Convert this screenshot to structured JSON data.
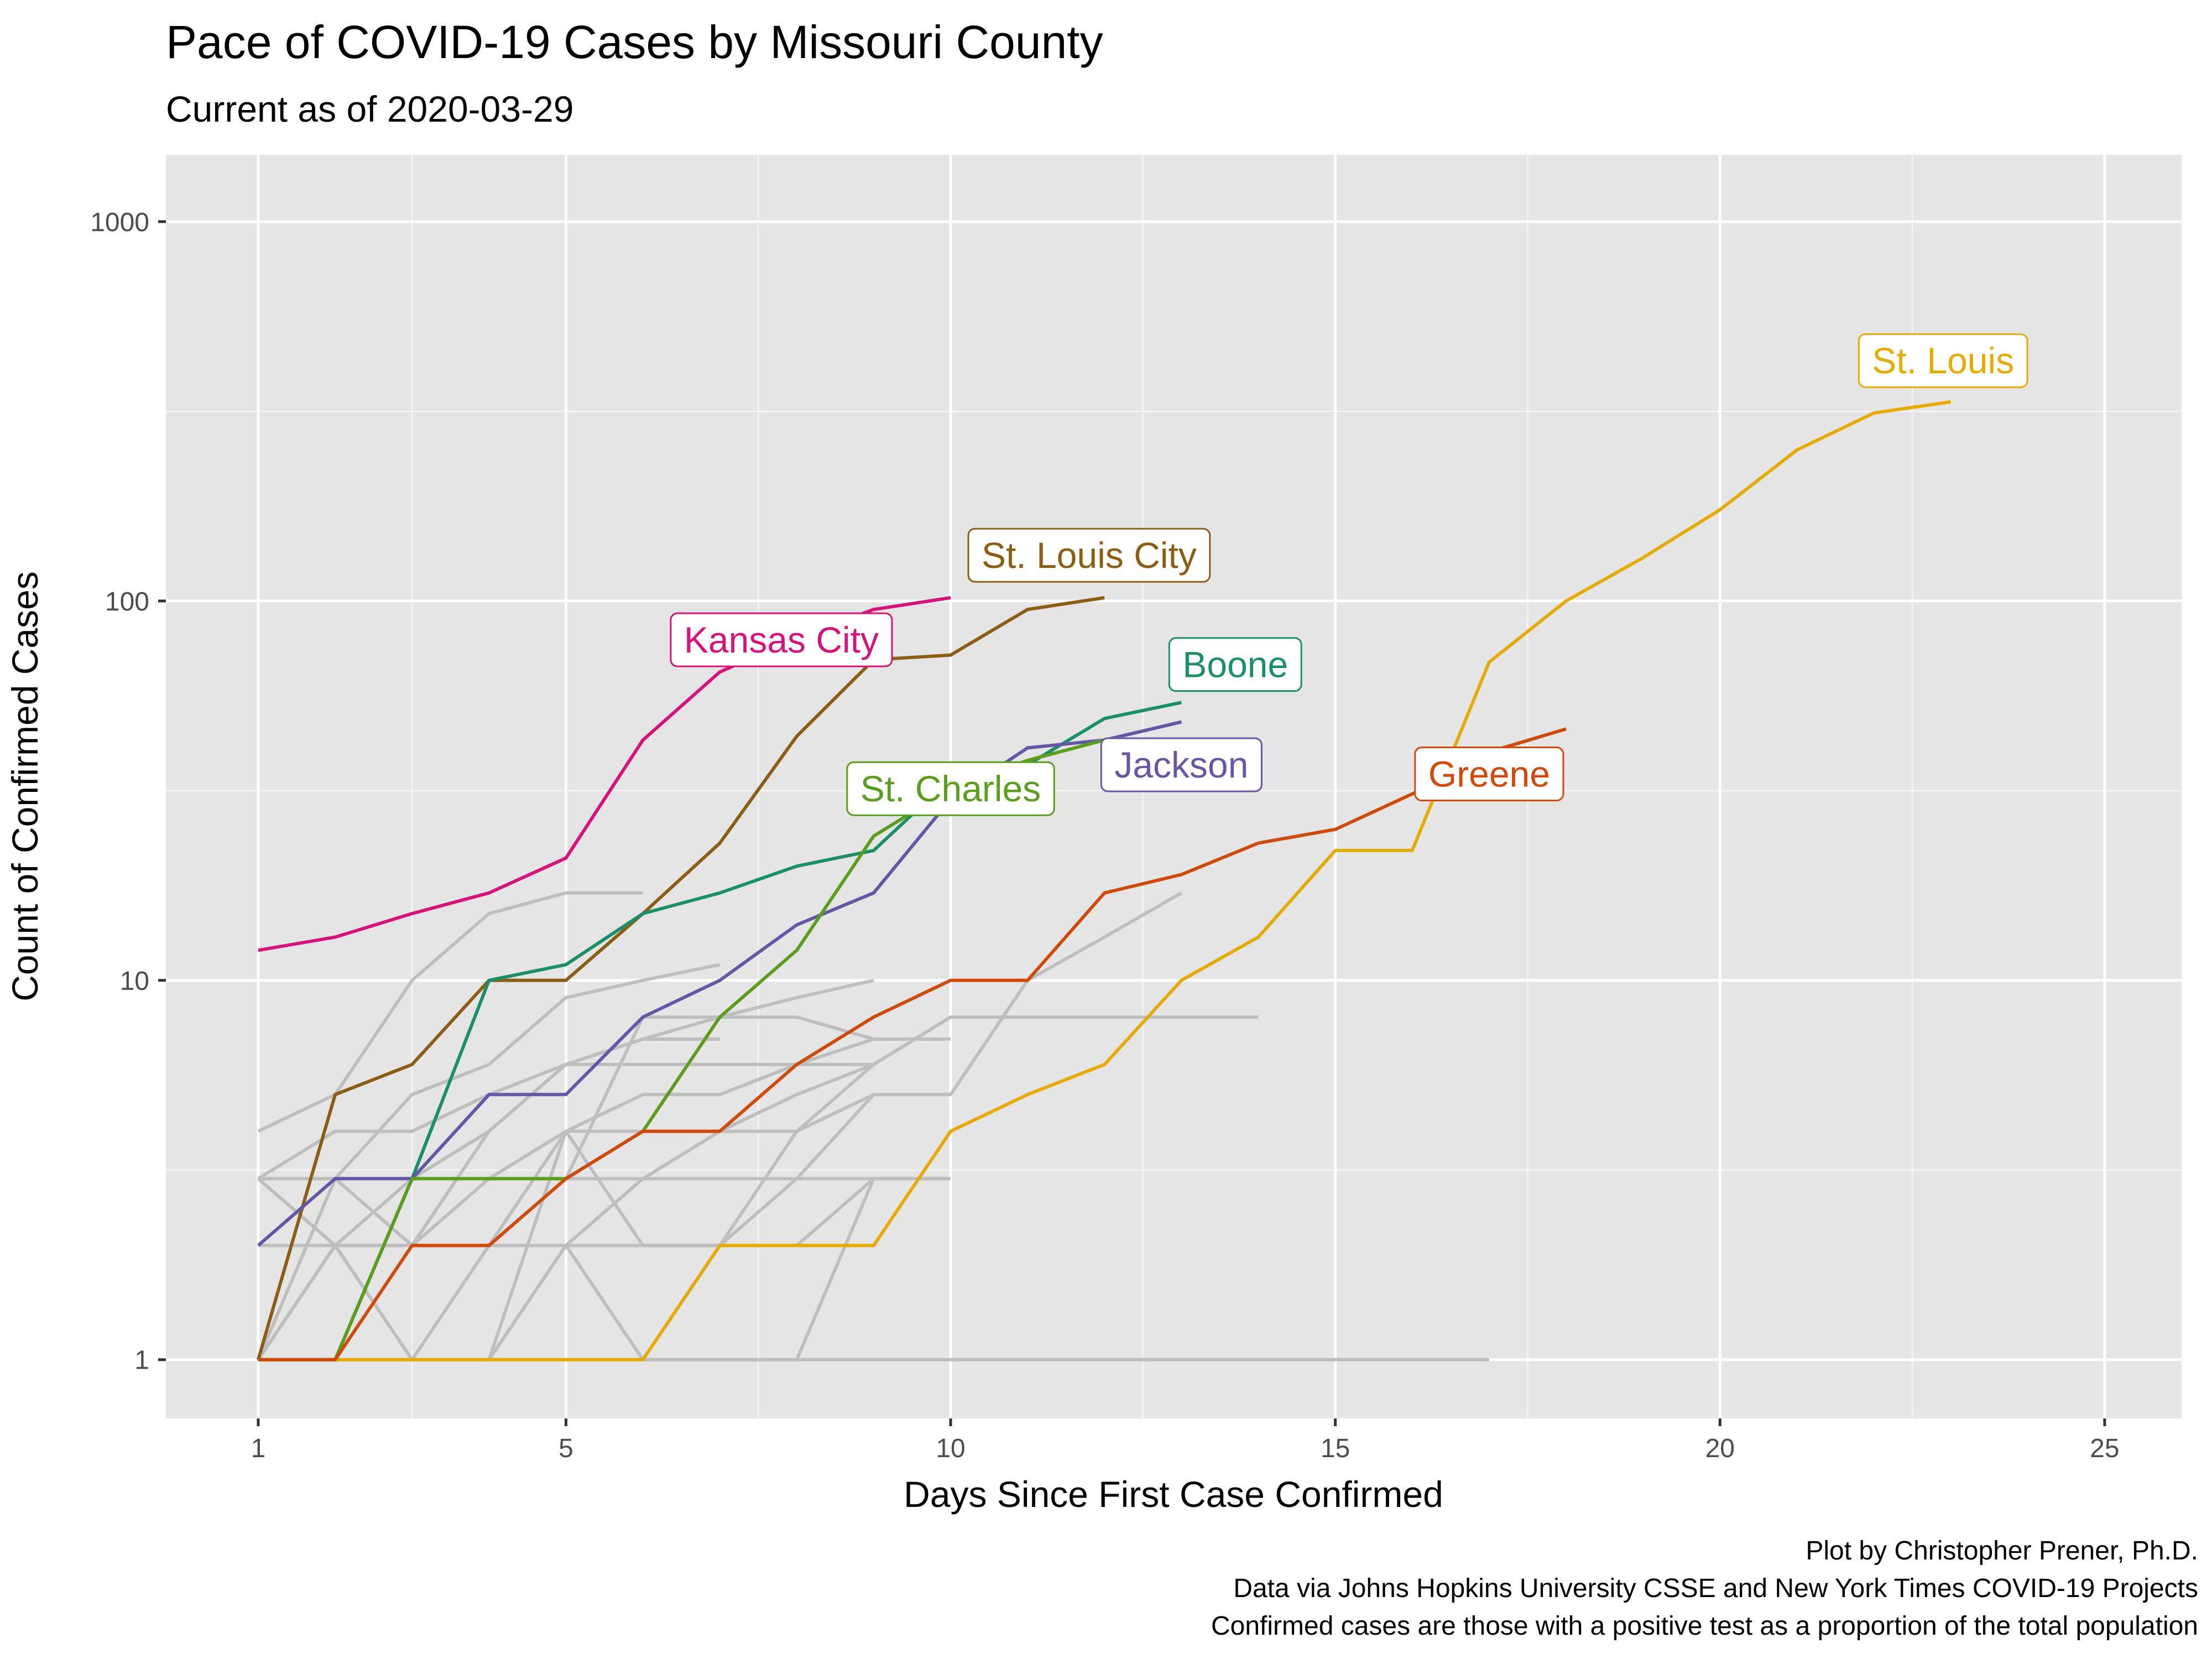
{
  "chart_data": {
    "type": "line",
    "title": "Pace of COVID-19 Cases by Missouri County",
    "subtitle": "Current as of 2020-03-29",
    "xlabel": "Days Since First Case Confirmed",
    "ylabel": "Count of Confirmed Cases",
    "xlim": [
      -0.2,
      26
    ],
    "ylim": [
      0.7,
      1500
    ],
    "yscale": "log10",
    "xticks": [
      1,
      5,
      10,
      15,
      20,
      25
    ],
    "xtick_labels": [
      "1",
      "5",
      "10",
      "15",
      "20",
      "25"
    ],
    "yticks": [
      1,
      10,
      100,
      1000
    ],
    "ytick_labels": [
      "1",
      "10",
      "100",
      "1000"
    ],
    "grid": true,
    "legend": "none",
    "caption": [
      "Plot by Christopher Prener, Ph.D.",
      "Data via Johns Hopkins University CSSE and New York Times COVID-19 Projects",
      "Confirmed cases are those with a positive test as a proportion of the total population"
    ],
    "background_series": [
      {
        "x": [
          1,
          2,
          3,
          4,
          5,
          6
        ],
        "y": [
          4,
          5,
          10,
          15,
          17,
          17
        ]
      },
      {
        "x": [
          1,
          2,
          3,
          4,
          5,
          6,
          7
        ],
        "y": [
          3,
          3,
          5,
          6,
          9,
          10,
          11
        ]
      },
      {
        "x": [
          1,
          2,
          3,
          4,
          5,
          6,
          7,
          8,
          9
        ],
        "y": [
          3,
          4,
          4,
          5,
          6,
          7,
          8,
          9,
          10
        ]
      },
      {
        "x": [
          1,
          2,
          3,
          4,
          5,
          6,
          7,
          8,
          9,
          10
        ],
        "y": [
          3,
          3,
          3,
          3,
          3,
          3,
          3,
          3,
          3,
          3
        ]
      },
      {
        "x": [
          1,
          2,
          3,
          4,
          5,
          6,
          7
        ],
        "y": [
          1,
          2,
          3,
          4,
          6,
          7,
          7
        ]
      },
      {
        "x": [
          1,
          2,
          3,
          4,
          5,
          6,
          7,
          8,
          9,
          10
        ],
        "y": [
          1,
          2,
          2,
          3,
          4,
          5,
          5,
          6,
          7,
          7
        ]
      },
      {
        "x": [
          1,
          2,
          3,
          4,
          5,
          6,
          7,
          8,
          9,
          10,
          11,
          12,
          13,
          14
        ],
        "y": [
          1,
          1,
          1,
          1,
          2,
          3,
          4,
          5,
          6,
          8,
          8,
          8,
          8,
          8
        ]
      },
      {
        "x": [
          1,
          2,
          3,
          4,
          5,
          6,
          7,
          8,
          9,
          10,
          11,
          12,
          13
        ],
        "y": [
          1,
          2,
          2,
          2,
          4,
          4,
          4,
          4,
          5,
          5,
          10,
          13,
          17
        ]
      },
      {
        "x": [
          1,
          2,
          3,
          4,
          5,
          6,
          7,
          8,
          9
        ],
        "y": [
          1,
          3,
          2,
          4,
          6,
          6,
          6,
          6,
          6
        ]
      },
      {
        "x": [
          1,
          2,
          3,
          4,
          5,
          6,
          7,
          8,
          9
        ],
        "y": [
          2,
          2,
          1,
          2,
          2,
          2,
          2,
          3,
          5
        ]
      },
      {
        "x": [
          1,
          2,
          3,
          4,
          5,
          6,
          7,
          8,
          9,
          10
        ],
        "y": [
          1,
          1,
          1,
          1,
          1,
          1,
          2,
          2,
          3,
          3
        ]
      },
      {
        "x": [
          1,
          2,
          3,
          4,
          5,
          6,
          7,
          8,
          9,
          10,
          11,
          12,
          13,
          14,
          15,
          16,
          17
        ],
        "y": [
          1,
          1,
          1,
          1,
          1,
          1,
          1,
          1,
          1,
          1,
          1,
          1,
          1,
          1,
          1,
          1,
          1
        ]
      },
      {
        "x": [
          1,
          2,
          3,
          4,
          5,
          6,
          7,
          8,
          9,
          10
        ],
        "y": [
          1,
          2,
          1,
          1,
          2,
          1,
          1,
          1,
          3,
          3
        ]
      },
      {
        "x": [
          1,
          2,
          3,
          4,
          5,
          6,
          7,
          8,
          9
        ],
        "y": [
          3,
          2,
          2,
          2,
          3,
          8,
          8,
          8,
          7
        ]
      },
      {
        "x": [
          1,
          2,
          3,
          4,
          5,
          6,
          7,
          8,
          9,
          10
        ],
        "y": [
          1,
          1,
          1,
          1,
          4,
          2,
          2,
          4,
          6,
          8
        ]
      }
    ],
    "series": [
      {
        "name": "St. Louis",
        "color": "#E6AB02",
        "x": [
          1,
          2,
          3,
          4,
          5,
          6,
          7,
          8,
          9,
          10,
          11,
          12,
          13,
          14,
          15,
          16,
          17,
          18,
          19,
          20,
          21,
          22,
          23
        ],
        "y": [
          1,
          1,
          1,
          1,
          1,
          1,
          2,
          2,
          2,
          4,
          5,
          6,
          10,
          13,
          22,
          22,
          69,
          100,
          130,
          174,
          250,
          313,
          335
        ],
        "label_at": [
          22.9,
          430
        ]
      },
      {
        "name": "St. Louis City",
        "color": "#8C5D14",
        "x": [
          1,
          2,
          3,
          4,
          5,
          6,
          7,
          8,
          9,
          10,
          11,
          12
        ],
        "y": [
          1,
          5,
          6,
          10,
          10,
          15,
          23,
          44,
          70,
          72,
          95,
          102
        ],
        "label_at": [
          11.8,
          132
        ]
      },
      {
        "name": "Kansas City",
        "color": "#D6137A",
        "x": [
          1,
          2,
          3,
          4,
          5,
          6,
          7,
          8,
          9,
          10
        ],
        "y": [
          12,
          13,
          15,
          17,
          21,
          43,
          65,
          80,
          95,
          102
        ],
        "label_at": [
          7.8,
          79
        ]
      },
      {
        "name": "Boone",
        "color": "#1B8F6A",
        "x": [
          1,
          2,
          3,
          4,
          5,
          6,
          7,
          8,
          9,
          10,
          11,
          12,
          13
        ],
        "y": [
          1,
          1,
          3,
          10,
          11,
          15,
          17,
          20,
          22,
          34,
          37,
          49,
          54
        ],
        "label_at": [
          13.7,
          68
        ]
      },
      {
        "name": "Jackson",
        "color": "#6457A6",
        "x": [
          1,
          2,
          3,
          4,
          5,
          6,
          7,
          8,
          9,
          10,
          11,
          12,
          13
        ],
        "y": [
          2,
          3,
          3,
          5,
          5,
          8,
          10,
          14,
          17,
          30,
          41,
          43,
          48
        ],
        "label_at": [
          13.0,
          37
        ]
      },
      {
        "name": "St. Charles",
        "color": "#5B9E1E",
        "x": [
          1,
          2,
          3,
          4,
          5,
          6,
          7,
          8,
          9,
          10,
          11,
          12
        ],
        "y": [
          1,
          1,
          3,
          3,
          3,
          4,
          8,
          12,
          24,
          32,
          38,
          43
        ],
        "label_at": [
          10.0,
          32
        ]
      },
      {
        "name": "Greene",
        "color": "#D04A0C",
        "x": [
          1,
          2,
          3,
          4,
          5,
          6,
          7,
          8,
          9,
          10,
          11,
          12,
          13,
          14,
          15,
          16,
          17,
          18
        ],
        "y": [
          1,
          1,
          2,
          2,
          3,
          4,
          4,
          6,
          8,
          10,
          10,
          17,
          19,
          23,
          25,
          31,
          40,
          46
        ],
        "label_at": [
          17.0,
          35
        ]
      }
    ]
  }
}
